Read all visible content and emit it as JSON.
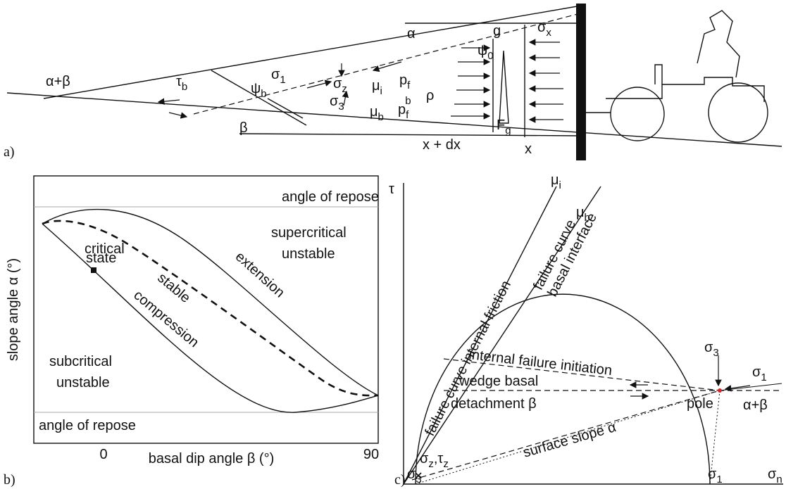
{
  "panel_a": {
    "label": "a)",
    "alpha": "α",
    "alpha_beta": "α+β",
    "tau_b": {
      "base": "τ",
      "sub": "b"
    },
    "psi_b": {
      "base": "ψ",
      "sub": "b"
    },
    "beta": "β",
    "sigma_1": {
      "base": "σ",
      "sub": "1"
    },
    "sigma_z": {
      "base": "σ",
      "sub": "z"
    },
    "sigma_3": {
      "base": "σ",
      "sub": "3"
    },
    "mu_i": {
      "base": "μ",
      "sub": "i"
    },
    "p_f": {
      "base": "p",
      "sub": "f"
    },
    "mu_b": {
      "base": "μ",
      "sub": "b"
    },
    "p_f_b": {
      "base": "p",
      "sub": "f",
      "sup": "b"
    },
    "rho": "ρ",
    "psi_0": {
      "base": "ψ",
      "sub": "0"
    },
    "g": "g",
    "sigma_x": {
      "base": "σ",
      "sub": "x"
    },
    "F_g": {
      "base": "F",
      "sub": "g"
    },
    "x_dx": "x + dx",
    "x": "x"
  },
  "panel_b": {
    "label": "b)",
    "y_axis_label": "slope angle α (°)",
    "x_axis_label": "basal dip angle β (°)",
    "x_ticks": [
      "0",
      "90"
    ],
    "repose_top": "angle of repose",
    "repose_bottom": "angle of repose",
    "supercritical": [
      "supercritical",
      "unstable"
    ],
    "extension": "extension",
    "stable": "stable",
    "compression": "compression",
    "subcritical": [
      "subcritical",
      "unstable"
    ],
    "critical_state": [
      "critical",
      "state"
    ]
  },
  "panel_c": {
    "label": "c)",
    "tau": "τ",
    "sigma_n": {
      "base": "σ",
      "sub": "n"
    },
    "sigma_1_axis": {
      "base": "σ",
      "sub": "1"
    },
    "sigma_3_axis": {
      "base": "σ",
      "sub": "3"
    },
    "mu_i": {
      "base": "μ",
      "sub": "i"
    },
    "mu_b": {
      "base": "μ",
      "sub": "b"
    },
    "failure_internal": "failure curve internal friction",
    "failure_basal": [
      "failure curve",
      "basal interface"
    ],
    "internal_failure": "internal failure initiation",
    "wedge_basal": [
      "wedge basal",
      "detachment β"
    ],
    "surface_slope": "surface slope α",
    "pole": "pole",
    "sigma_3_top": {
      "base": "σ",
      "sub": "3"
    },
    "sigma_1_right": {
      "base": "σ",
      "sub": "1"
    },
    "alpha_beta": "α+β",
    "sigma_z_tau_z": [
      "σ",
      "z",
      ",",
      "τ",
      "z"
    ]
  }
}
